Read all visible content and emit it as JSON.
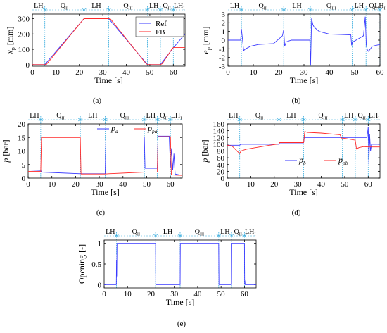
{
  "colors": {
    "ref": "#3a3aff",
    "fb": "#ff2a2a",
    "blue": "#3a3aff",
    "red": "#ff2a2a",
    "phase_marker": "#33aadd",
    "axis": "#000000"
  },
  "chart_data": [
    {
      "panel": "(a)",
      "type": "line",
      "xlabel": "Time [s]",
      "ylabel": "x",
      "ylabel_sub": "p",
      "ylabel_unit": "[mm]",
      "xlim": [
        0,
        65
      ],
      "ylim": [
        -10,
        330
      ],
      "xticks": [
        "0",
        "10",
        "20",
        "30",
        "40",
        "50",
        "60"
      ],
      "yticks": [
        "0",
        "100",
        "200",
        "300"
      ],
      "phases": [
        {
          "main": "LH",
          "sub": ""
        },
        {
          "main": "Q",
          "sub": "II"
        },
        {
          "main": "LH",
          "sub": ""
        },
        {
          "main": "Q",
          "sub": "III"
        },
        {
          "main": "LH",
          "sub": ""
        },
        {
          "main": "Q",
          "sub": "II"
        },
        {
          "main": "LH",
          "sub": "I"
        }
      ],
      "phase_boundaries": [
        5.3,
        22,
        32.5,
        49,
        54.5,
        60
      ],
      "legend_position": "top-right",
      "series": [
        {
          "name": "Ref",
          "color_key": "ref",
          "x": [
            0,
            5.3,
            22,
            32.5,
            49,
            54.5,
            60,
            65
          ],
          "y": [
            0,
            0,
            300,
            300,
            0,
            0,
            110,
            200
          ]
        },
        {
          "name": "FB",
          "color_key": "fb",
          "x": [
            0,
            5.3,
            6,
            21.3,
            22,
            32.5,
            33.3,
            48.2,
            49,
            54.5,
            55.3,
            59.3,
            60,
            65
          ],
          "y": [
            0,
            0,
            2,
            288,
            300,
            300,
            297,
            10,
            0,
            0,
            6,
            100,
            112,
            112
          ]
        }
      ]
    },
    {
      "panel": "(b)",
      "type": "line",
      "xlabel": "Time [s]",
      "ylabel": "e",
      "ylabel_sub": "p",
      "ylabel_unit": "[mm]",
      "xlim": [
        0,
        60
      ],
      "ylim": [
        -3,
        3
      ],
      "xticks": [
        "0",
        "10",
        "20",
        "30",
        "40",
        "50",
        "60"
      ],
      "yticks": [
        "-3",
        "-2",
        "-1",
        "0",
        "1",
        "2",
        "3"
      ],
      "phases": [
        {
          "main": "LH",
          "sub": ""
        },
        {
          "main": "Q",
          "sub": "II"
        },
        {
          "main": "LH",
          "sub": ""
        },
        {
          "main": "Q",
          "sub": "III"
        },
        {
          "main": "LH",
          "sub": ""
        },
        {
          "main": "Q",
          "sub": "II"
        },
        {
          "main": "LH",
          "sub": "I"
        }
      ],
      "phase_boundaries": [
        5.3,
        22,
        32.5,
        49,
        54.5,
        60
      ],
      "series": [
        {
          "name": "",
          "color_key": "blue",
          "x": [
            0,
            5,
            5.3,
            5.7,
            6.2,
            7,
            9,
            12,
            18,
            21.5,
            22,
            22.4,
            23,
            25,
            28,
            32.3,
            32.6,
            33,
            33.5,
            34,
            36,
            40,
            48.5,
            48.8,
            49.2,
            50,
            53.5,
            54.2,
            54.6,
            55,
            55.5,
            57,
            60
          ],
          "y": [
            0,
            0,
            1.3,
            0.2,
            -1.2,
            -1,
            -0.7,
            -0.5,
            -0.4,
            0.5,
            1.2,
            -0.7,
            -0.2,
            0,
            0,
            0,
            -2.9,
            2.5,
            1.8,
            1.5,
            1,
            0.7,
            0.6,
            -0.6,
            -0.2,
            -0.1,
            0.5,
            2.7,
            -0.5,
            -1.1,
            -1.3,
            -0.7,
            -0.5
          ]
        }
      ]
    },
    {
      "panel": "(c)",
      "type": "line",
      "xlabel": "Time [s]",
      "ylabel": "p",
      "ylabel_unit": "[bar]",
      "xlim": [
        0,
        65
      ],
      "ylim": [
        0,
        20
      ],
      "xticks": [
        "0",
        "10",
        "20",
        "30",
        "40",
        "50",
        "60"
      ],
      "yticks": [
        "0",
        "5",
        "10",
        "15",
        "20"
      ],
      "phases": [
        {
          "main": "LH",
          "sub": ""
        },
        {
          "main": "Q",
          "sub": "II"
        },
        {
          "main": "LH",
          "sub": ""
        },
        {
          "main": "Q",
          "sub": "III"
        },
        {
          "main": "LH",
          "sub": ""
        },
        {
          "main": "Q",
          "sub": "II"
        },
        {
          "main": "LH",
          "sub": "I"
        }
      ],
      "phase_boundaries": [
        5.3,
        22,
        32.5,
        49,
        54.5,
        60
      ],
      "legend_position": "top-right",
      "series": [
        {
          "name": "a",
          "prefix": "p",
          "color_key": "blue",
          "x": [
            0,
            5.3,
            5.8,
            22,
            22.3,
            32.5,
            32.8,
            49,
            49.3,
            54.5,
            54.8,
            59.5,
            60,
            60.5,
            61,
            61.5,
            62,
            65
          ],
          "y": [
            3,
            2.8,
            2.2,
            1.6,
            1.6,
            1.6,
            15.2,
            15.2,
            3.6,
            3.6,
            15.5,
            15.5,
            4,
            11,
            3,
            9,
            1.5,
            1
          ]
        },
        {
          "name": "pa",
          "prefix": "p",
          "color_key": "red",
          "x": [
            0,
            5.3,
            5.6,
            22,
            22.3,
            32.5,
            34,
            49,
            49.3,
            54.5,
            54.8,
            60,
            60.4,
            65
          ],
          "y": [
            2.5,
            2.5,
            15,
            15,
            1.5,
            1.5,
            1.6,
            2.2,
            2.2,
            2.2,
            15.3,
            15.3,
            1.2,
            1
          ]
        }
      ]
    },
    {
      "panel": "(d)",
      "type": "line",
      "xlabel": "Time [s]",
      "ylabel": "p",
      "ylabel_unit": "[bar]",
      "xlim": [
        0,
        65
      ],
      "ylim": [
        0,
        160
      ],
      "xticks": [
        "0",
        "10",
        "20",
        "30",
        "40",
        "50",
        "60"
      ],
      "yticks": [
        "0",
        "20",
        "40",
        "60",
        "80",
        "100",
        "120",
        "140",
        "160"
      ],
      "phases": [
        {
          "main": "LH",
          "sub": ""
        },
        {
          "main": "Q",
          "sub": "II"
        },
        {
          "main": "LH",
          "sub": ""
        },
        {
          "main": "Q",
          "sub": "III"
        },
        {
          "main": "LH",
          "sub": ""
        },
        {
          "main": "Q",
          "sub": "II"
        },
        {
          "main": "LH",
          "sub": "I"
        }
      ],
      "phase_boundaries": [
        5.3,
        22,
        32.5,
        49,
        54.5,
        60
      ],
      "legend_position": "bottom-center",
      "series": [
        {
          "name": "b",
          "prefix": "p",
          "color_key": "blue",
          "x": [
            0,
            5.3,
            5.8,
            21.8,
            22.3,
            32.5,
            32.8,
            54.5,
            58,
            59.5,
            60,
            60.3,
            60.6,
            61,
            61.4,
            65
          ],
          "y": [
            97,
            97,
            100,
            100,
            104,
            104,
            120,
            120,
            120,
            120,
            150,
            40,
            130,
            80,
            100,
            100
          ]
        },
        {
          "name": "pb",
          "prefix": "p",
          "color_key": "red",
          "x": [
            0,
            2,
            5.3,
            5.8,
            8,
            12,
            18,
            22,
            22.3,
            32.5,
            33,
            34,
            40,
            48,
            49,
            49.5,
            54.5,
            55,
            56,
            58,
            60,
            65
          ],
          "y": [
            97,
            95,
            72,
            80,
            85,
            90,
            97,
            101,
            105,
            105,
            138,
            135,
            133,
            128,
            115,
            118,
            112,
            86,
            90,
            93,
            92,
            92
          ]
        }
      ]
    },
    {
      "panel": "(e)",
      "type": "line",
      "xlabel": "Time [s]",
      "ylabel": "Opening [-]",
      "xlim": [
        0,
        65
      ],
      "ylim": [
        -0.08,
        1.08
      ],
      "xticks": [
        "0",
        "10",
        "20",
        "30",
        "40",
        "50",
        "60"
      ],
      "yticks": [
        "0",
        "0.5",
        "1"
      ],
      "phases": [
        {
          "main": "LH",
          "sub": ""
        },
        {
          "main": "Q",
          "sub": "II"
        },
        {
          "main": "LH",
          "sub": ""
        },
        {
          "main": "Q",
          "sub": "III"
        },
        {
          "main": "LH",
          "sub": ""
        },
        {
          "main": "Q",
          "sub": "II"
        },
        {
          "main": "LH",
          "sub": "I"
        }
      ],
      "phase_boundaries": [
        5.3,
        22,
        32.5,
        49,
        54.5,
        60
      ],
      "series": [
        {
          "name": "",
          "color_key": "blue",
          "x": [
            0,
            5.2,
            5.3,
            5.4,
            5.5,
            22,
            22.1,
            32.5,
            32.6,
            49,
            49.1,
            54.5,
            54.6,
            60,
            60.1,
            60.2,
            60.3,
            65
          ],
          "y": [
            0,
            0,
            0.6,
            0.2,
            1,
            1,
            0,
            0,
            1,
            1,
            0,
            0,
            1,
            1,
            0,
            0.1,
            0,
            0
          ]
        }
      ]
    }
  ]
}
